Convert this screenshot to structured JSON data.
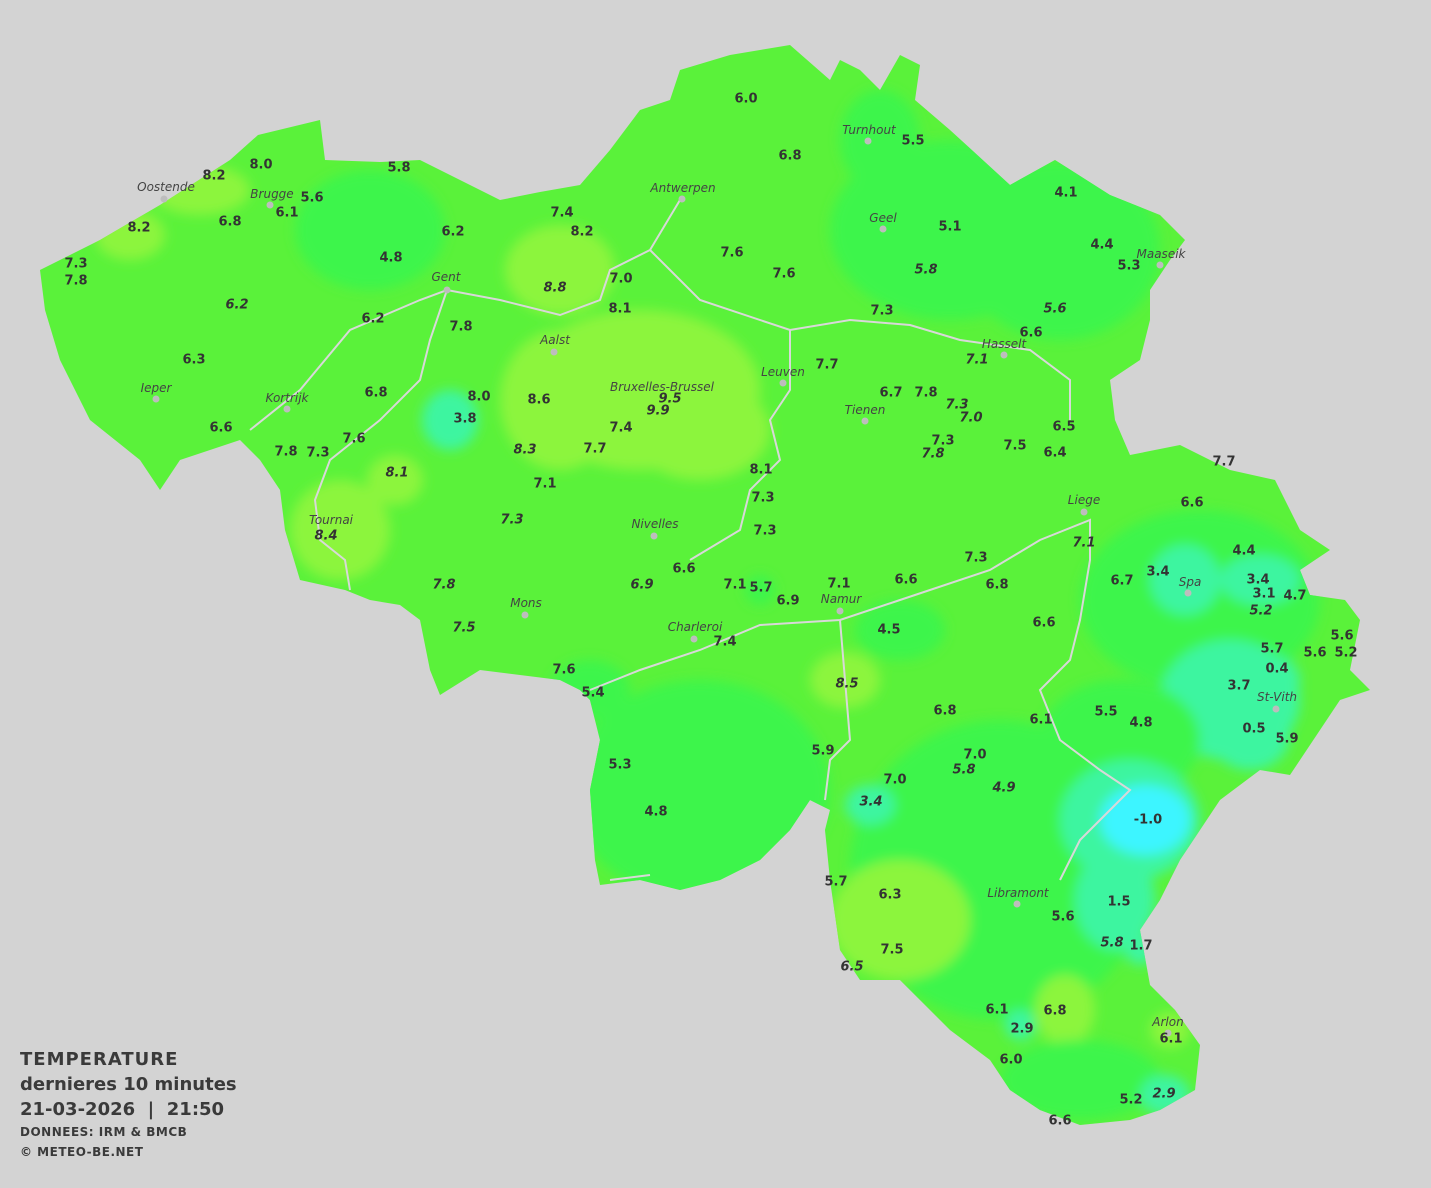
{
  "map": {
    "colors": {
      "background": "#d3d3d3",
      "base": "#5af23a",
      "warm": "#8cf53e",
      "cool": "#3cf54c",
      "colder": "#3cf5a0",
      "coldest": "#3cf5ff",
      "rivers": "#d8d8d8"
    },
    "cities": [
      "Oostende",
      "Brugge",
      "Gent",
      "Antwerpen",
      "Turnhout",
      "Geel",
      "Maaseik",
      "Hasselt",
      "Aalst",
      "Bruxelles-Brussel",
      "Leuven",
      "Tienen",
      "Ieper",
      "Kortrijk",
      "Tournai",
      "Nivelles",
      "Liege",
      "Spa",
      "Mons",
      "Charleroi",
      "Namur",
      "St-Vith",
      "Libramont",
      "Arlon"
    ],
    "readings": [
      {
        "v": "8.0"
      },
      {
        "v": "8.2"
      },
      {
        "v": "5.8"
      },
      {
        "v": "5.6"
      },
      {
        "v": "6.1"
      },
      {
        "v": "6.8"
      },
      {
        "v": "8.2"
      },
      {
        "v": "7.3"
      },
      {
        "v": "7.8"
      },
      {
        "v": "4.8"
      },
      {
        "v": "6.2"
      },
      {
        "v": "7.4"
      },
      {
        "v": "8.2"
      },
      {
        "v": "6.0"
      },
      {
        "v": "6.8"
      },
      {
        "v": "5.5"
      },
      {
        "v": "4.1"
      },
      {
        "v": "5.1"
      },
      {
        "v": "4.4"
      },
      {
        "v": "5.3"
      },
      {
        "v": "7.6"
      },
      {
        "v": "7.6"
      },
      {
        "v": "5.8",
        "i": true
      },
      {
        "v": "5.6",
        "i": true
      },
      {
        "v": "7.0"
      },
      {
        "v": "8.8",
        "i": true
      },
      {
        "v": "8.1"
      },
      {
        "v": "6.2",
        "i": true
      },
      {
        "v": "6.2"
      },
      {
        "v": "7.8"
      },
      {
        "v": "7.3"
      },
      {
        "v": "6.6"
      },
      {
        "v": "7.1",
        "i": true
      },
      {
        "v": "6.3"
      },
      {
        "v": "7.7"
      },
      {
        "v": "6.8"
      },
      {
        "v": "8.0"
      },
      {
        "v": "8.6"
      },
      {
        "v": "9.5",
        "i": true
      },
      {
        "v": "9.9",
        "i": true
      },
      {
        "v": "6.7"
      },
      {
        "v": "7.8"
      },
      {
        "v": "7.3",
        "i": true
      },
      {
        "v": "7.0",
        "i": true
      },
      {
        "v": "3.8"
      },
      {
        "v": "6.6"
      },
      {
        "v": "7.4"
      },
      {
        "v": "6.5"
      },
      {
        "v": "7.6"
      },
      {
        "v": "7.8"
      },
      {
        "v": "7.3"
      },
      {
        "v": "8.3",
        "i": true
      },
      {
        "v": "7.7"
      },
      {
        "v": "7.3"
      },
      {
        "v": "7.8",
        "i": true
      },
      {
        "v": "7.5"
      },
      {
        "v": "6.4"
      },
      {
        "v": "7.7"
      },
      {
        "v": "8.1",
        "i": true
      },
      {
        "v": "8.1"
      },
      {
        "v": "7.1"
      },
      {
        "v": "7.3"
      },
      {
        "v": "6.6"
      },
      {
        "v": "7.3",
        "i": true
      },
      {
        "v": "8.4",
        "i": true
      },
      {
        "v": "7.3"
      },
      {
        "v": "7.1",
        "i": true
      },
      {
        "v": "4.4"
      },
      {
        "v": "7.3"
      },
      {
        "v": "6.6"
      },
      {
        "v": "6.9",
        "i": true
      },
      {
        "v": "7.1"
      },
      {
        "v": "5.7"
      },
      {
        "v": "7.1"
      },
      {
        "v": "6.6"
      },
      {
        "v": "6.8"
      },
      {
        "v": "6.7"
      },
      {
        "v": "3.4"
      },
      {
        "v": "3.4"
      },
      {
        "v": "3.1"
      },
      {
        "v": "4.7"
      },
      {
        "v": "5.2",
        "i": true
      },
      {
        "v": "7.8",
        "i": true
      },
      {
        "v": "6.9"
      },
      {
        "v": "7.5",
        "i": true
      },
      {
        "v": "4.5"
      },
      {
        "v": "6.6"
      },
      {
        "v": "5.7"
      },
      {
        "v": "5.6"
      },
      {
        "v": "5.6"
      },
      {
        "v": "5.2"
      },
      {
        "v": "0.4"
      },
      {
        "v": "7.4"
      },
      {
        "v": "7.6"
      },
      {
        "v": "5.4"
      },
      {
        "v": "8.5",
        "i": true
      },
      {
        "v": "3.7"
      },
      {
        "v": "6.8"
      },
      {
        "v": "6.1"
      },
      {
        "v": "5.5"
      },
      {
        "v": "4.8"
      },
      {
        "v": "0.5"
      },
      {
        "v": "5.9"
      },
      {
        "v": "5.9"
      },
      {
        "v": "7.0"
      },
      {
        "v": "5.8",
        "i": true
      },
      {
        "v": "5.3"
      },
      {
        "v": "7.0"
      },
      {
        "v": "4.9",
        "i": true
      },
      {
        "v": "3.4",
        "i": true
      },
      {
        "v": "4.8"
      },
      {
        "v": "-1.0"
      },
      {
        "v": "5.7"
      },
      {
        "v": "6.3"
      },
      {
        "v": "1.5"
      },
      {
        "v": "5.6"
      },
      {
        "v": "5.8",
        "i": true
      },
      {
        "v": "1.7"
      },
      {
        "v": "7.5"
      },
      {
        "v": "6.5",
        "i": true
      },
      {
        "v": "6.8"
      },
      {
        "v": "6.1"
      },
      {
        "v": "2.9"
      },
      {
        "v": "6.1"
      },
      {
        "v": "6.0"
      },
      {
        "v": "5.2"
      },
      {
        "v": "2.9",
        "i": true
      },
      {
        "v": "6.6"
      }
    ]
  },
  "legend": {
    "title": "TEMPERATURE",
    "subtitle": "dernieres 10 minutes",
    "datetime": "21-03-2026  |  21:50",
    "source": "DONNEES: IRM & BMCB",
    "copyright": "© METEO-BE.NET"
  }
}
